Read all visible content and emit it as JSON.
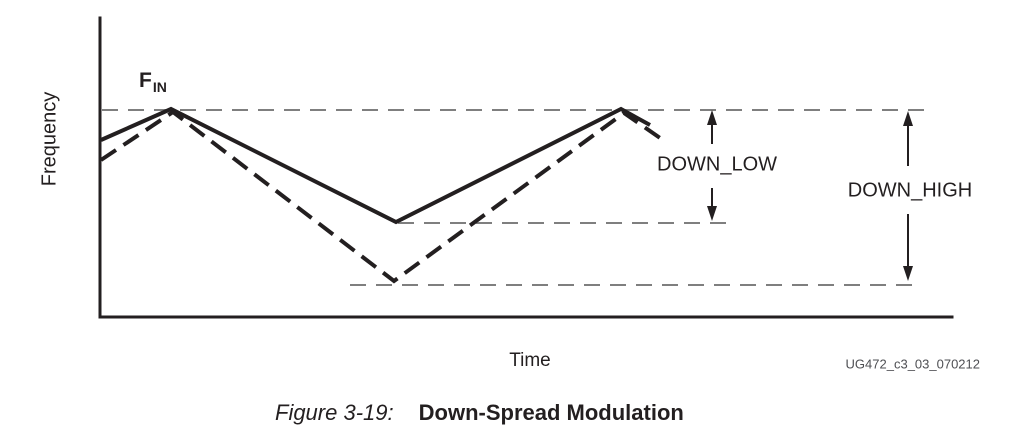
{
  "colors": {
    "bg": "#ffffff",
    "ink": "#231f20",
    "text": "#231f20",
    "ref-line": "#7f7f7f",
    "watermark": "#4e4f53"
  },
  "labels": {
    "y_axis": "Frequency",
    "x_axis": "Time",
    "fin_base": "F",
    "fin_sub": "IN",
    "down_low": "DOWN_LOW",
    "down_high": "DOWN_HIGH",
    "watermark": "UG472_c3_03_070212"
  },
  "caption": {
    "prefix": "Figure 3-19:",
    "title": "Down-Spread Modulation"
  },
  "diagram": {
    "description": "Down-spread modulation: input frequency FIN is the maximum; solid triangular wave dips to DOWN_LOW level, dashed triangular wave dips to DOWN_HIGH level, both returning to FIN.",
    "series": [
      {
        "name": "DOWN_LOW spread",
        "style": "solid"
      },
      {
        "name": "DOWN_HIGH spread",
        "style": "dashed"
      }
    ]
  },
  "geometry": {
    "axes": "100,18 100,317 952,317",
    "ref_line_top": "102,110 928,110",
    "ref_line_mid": "398,223 727,223",
    "ref_line_bottom": "350,285 922,285",
    "solid_wave": "101,140 171,109 396,222 621,109 650,125",
    "dashed_wave": "101,160 173,112 394,281 624,113 663,140",
    "down_low_arrow_top_shaft": "712,123 712,144",
    "down_low_arrow_top_head": "712,110 707,125 717,125",
    "down_low_arrow_bottom_shaft": "712,188 712,208",
    "down_low_arrow_bottom_head": "712,221 707,206 717,206",
    "down_high_arrow_top_shaft": "908,124 908,166",
    "down_high_arrow_top_head": "908,111 903,126 913,126",
    "down_high_arrow_bottom_shaft": "908,214 908,267",
    "down_high_arrow_bottom_head": "908,281 903,266 913,266"
  }
}
